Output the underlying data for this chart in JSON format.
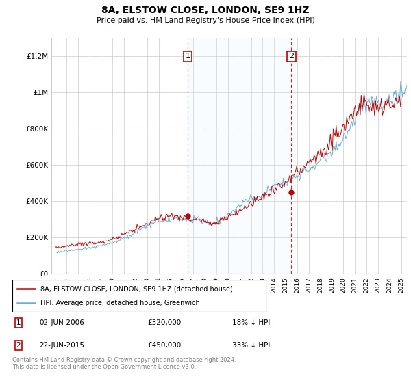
{
  "title": "8A, ELSTOW CLOSE, LONDON, SE9 1HZ",
  "subtitle": "Price paid vs. HM Land Registry's House Price Index (HPI)",
  "footer": "Contains HM Land Registry data © Crown copyright and database right 2024.\nThis data is licensed under the Open Government Licence v3.0.",
  "legend_line1": "8A, ELSTOW CLOSE, LONDON, SE9 1HZ (detached house)",
  "legend_line2": "HPI: Average price, detached house, Greenwich",
  "ann1_x": 2006.5,
  "ann1_y": 320000,
  "ann2_x": 2015.5,
  "ann2_y": 450000,
  "ann1_date": "02-JUN-2006",
  "ann1_price": "£320,000",
  "ann1_pct": "18% ↓ HPI",
  "ann2_date": "22-JUN-2015",
  "ann2_price": "£450,000",
  "ann2_pct": "33% ↓ HPI",
  "hpi_color": "#6BAED6",
  "price_color": "#C00000",
  "shade_color": "#DDEEFF",
  "grid_color": "#CCCCCC",
  "ann_color": "#C00000",
  "ylim": [
    0,
    1300000
  ],
  "xlim_min": 1994.7,
  "xlim_max": 2025.5,
  "yticks": [
    0,
    200000,
    400000,
    600000,
    800000,
    1000000,
    1200000
  ],
  "ytick_labels": [
    "£0",
    "£200K",
    "£400K",
    "£600K",
    "£800K",
    "£1M",
    "£1.2M"
  ]
}
